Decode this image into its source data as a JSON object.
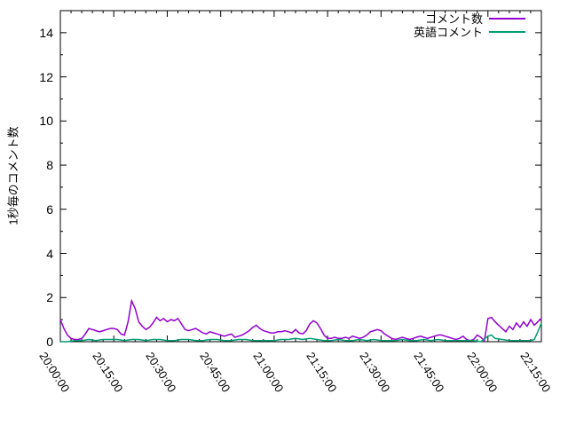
{
  "figure": {
    "background": "#ffffff",
    "frame_color": "#000000"
  },
  "chart_data": {
    "type": "line",
    "title": "",
    "xlabel": "",
    "ylabel": "1秒毎のコメント数",
    "ylim": [
      0,
      15
    ],
    "xlim_minutes": [
      0,
      135
    ],
    "grid": false,
    "legend_position": "top-right-inside",
    "y_major_ticks": [
      0,
      2,
      4,
      6,
      8,
      10,
      12,
      14
    ],
    "y_minor_step": 1,
    "x_minor_step_minutes": 3,
    "x_ticks": [
      {
        "t": 0,
        "label": "20:00:00"
      },
      {
        "t": 15,
        "label": "20:15:00"
      },
      {
        "t": 30,
        "label": "20:30:00"
      },
      {
        "t": 45,
        "label": "20:45:00"
      },
      {
        "t": 60,
        "label": "21:00:00"
      },
      {
        "t": 75,
        "label": "21:15:00"
      },
      {
        "t": 90,
        "label": "21:30:00"
      },
      {
        "t": 105,
        "label": "21:45:00"
      },
      {
        "t": 120,
        "label": "22:00:00"
      },
      {
        "t": 135,
        "label": "22:15:00"
      }
    ],
    "series": [
      {
        "name": "コメント数",
        "color": "#9400d3",
        "points": [
          [
            0,
            1.0
          ],
          [
            1,
            0.6
          ],
          [
            2,
            0.3
          ],
          [
            3,
            0.15
          ],
          [
            4,
            0.1
          ],
          [
            5,
            0.1
          ],
          [
            6,
            0.15
          ],
          [
            7,
            0.35
          ],
          [
            8,
            0.6
          ],
          [
            9,
            0.55
          ],
          [
            10,
            0.5
          ],
          [
            11,
            0.45
          ],
          [
            12,
            0.5
          ],
          [
            13,
            0.55
          ],
          [
            14,
            0.6
          ],
          [
            15,
            0.6
          ],
          [
            16,
            0.55
          ],
          [
            17,
            0.35
          ],
          [
            18,
            0.3
          ],
          [
            19,
            0.9
          ],
          [
            20,
            1.85
          ],
          [
            21,
            1.5
          ],
          [
            22,
            0.9
          ],
          [
            23,
            0.7
          ],
          [
            24,
            0.55
          ],
          [
            25,
            0.65
          ],
          [
            26,
            0.85
          ],
          [
            27,
            1.1
          ],
          [
            28,
            0.95
          ],
          [
            29,
            1.05
          ],
          [
            30,
            0.9
          ],
          [
            31,
            1.0
          ],
          [
            32,
            0.95
          ],
          [
            33,
            1.05
          ],
          [
            34,
            0.8
          ],
          [
            35,
            0.55
          ],
          [
            36,
            0.5
          ],
          [
            37,
            0.55
          ],
          [
            38,
            0.6
          ],
          [
            39,
            0.5
          ],
          [
            40,
            0.4
          ],
          [
            41,
            0.35
          ],
          [
            42,
            0.45
          ],
          [
            43,
            0.4
          ],
          [
            44,
            0.35
          ],
          [
            45,
            0.3
          ],
          [
            46,
            0.25
          ],
          [
            47,
            0.3
          ],
          [
            48,
            0.35
          ],
          [
            49,
            0.2
          ],
          [
            50,
            0.25
          ],
          [
            51,
            0.3
          ],
          [
            52,
            0.4
          ],
          [
            53,
            0.5
          ],
          [
            54,
            0.65
          ],
          [
            55,
            0.75
          ],
          [
            56,
            0.6
          ],
          [
            57,
            0.5
          ],
          [
            58,
            0.45
          ],
          [
            59,
            0.4
          ],
          [
            60,
            0.4
          ],
          [
            61,
            0.45
          ],
          [
            62,
            0.45
          ],
          [
            63,
            0.5
          ],
          [
            64,
            0.45
          ],
          [
            65,
            0.4
          ],
          [
            66,
            0.55
          ],
          [
            67,
            0.4
          ],
          [
            68,
            0.35
          ],
          [
            69,
            0.5
          ],
          [
            70,
            0.8
          ],
          [
            71,
            0.95
          ],
          [
            72,
            0.85
          ],
          [
            73,
            0.6
          ],
          [
            74,
            0.3
          ],
          [
            75,
            0.15
          ],
          [
            76,
            0.15
          ],
          [
            77,
            0.2
          ],
          [
            78,
            0.15
          ],
          [
            79,
            0.15
          ],
          [
            80,
            0.2
          ],
          [
            81,
            0.15
          ],
          [
            82,
            0.25
          ],
          [
            83,
            0.2
          ],
          [
            84,
            0.15
          ],
          [
            85,
            0.2
          ],
          [
            86,
            0.3
          ],
          [
            87,
            0.45
          ],
          [
            88,
            0.5
          ],
          [
            89,
            0.55
          ],
          [
            90,
            0.5
          ],
          [
            91,
            0.35
          ],
          [
            92,
            0.25
          ],
          [
            93,
            0.15
          ],
          [
            94,
            0.1
          ],
          [
            95,
            0.15
          ],
          [
            96,
            0.2
          ],
          [
            97,
            0.15
          ],
          [
            98,
            0.1
          ],
          [
            99,
            0.15
          ],
          [
            100,
            0.2
          ],
          [
            101,
            0.25
          ],
          [
            102,
            0.2
          ],
          [
            103,
            0.15
          ],
          [
            104,
            0.2
          ],
          [
            105,
            0.25
          ],
          [
            106,
            0.3
          ],
          [
            107,
            0.3
          ],
          [
            108,
            0.25
          ],
          [
            109,
            0.2
          ],
          [
            110,
            0.15
          ],
          [
            111,
            0.1
          ],
          [
            112,
            0.15
          ],
          [
            113,
            0.25
          ],
          [
            114,
            0.1
          ],
          [
            115,
            0.05
          ],
          [
            116,
            0.1
          ],
          [
            117,
            0.3
          ],
          [
            118,
            0.2
          ],
          [
            119,
            0.05
          ],
          [
            120,
            1.05
          ],
          [
            121,
            1.1
          ],
          [
            122,
            0.9
          ],
          [
            123,
            0.75
          ],
          [
            124,
            0.6
          ],
          [
            125,
            0.45
          ],
          [
            126,
            0.7
          ],
          [
            127,
            0.55
          ],
          [
            128,
            0.85
          ],
          [
            129,
            0.65
          ],
          [
            130,
            0.9
          ],
          [
            131,
            0.7
          ],
          [
            132,
            1.0
          ],
          [
            133,
            0.75
          ],
          [
            134,
            0.9
          ],
          [
            135,
            1.05
          ]
        ]
      },
      {
        "name": "英語コメント",
        "color": "#009e73",
        "points": [
          [
            0,
            0.0
          ],
          [
            2,
            0.0
          ],
          [
            4,
            0.05
          ],
          [
            6,
            0.05
          ],
          [
            8,
            0.1
          ],
          [
            10,
            0.05
          ],
          [
            12,
            0.1
          ],
          [
            14,
            0.1
          ],
          [
            16,
            0.1
          ],
          [
            18,
            0.05
          ],
          [
            20,
            0.1
          ],
          [
            22,
            0.1
          ],
          [
            24,
            0.05
          ],
          [
            26,
            0.1
          ],
          [
            28,
            0.1
          ],
          [
            30,
            0.05
          ],
          [
            32,
            0.05
          ],
          [
            34,
            0.1
          ],
          [
            36,
            0.1
          ],
          [
            38,
            0.05
          ],
          [
            40,
            0.05
          ],
          [
            42,
            0.1
          ],
          [
            44,
            0.1
          ],
          [
            46,
            0.05
          ],
          [
            48,
            0.05
          ],
          [
            50,
            0.1
          ],
          [
            52,
            0.1
          ],
          [
            54,
            0.05
          ],
          [
            56,
            0.05
          ],
          [
            58,
            0.05
          ],
          [
            60,
            0.05
          ],
          [
            62,
            0.1
          ],
          [
            64,
            0.1
          ],
          [
            66,
            0.15
          ],
          [
            68,
            0.1
          ],
          [
            70,
            0.15
          ],
          [
            72,
            0.1
          ],
          [
            74,
            0.05
          ],
          [
            76,
            0.05
          ],
          [
            78,
            0.1
          ],
          [
            80,
            0.05
          ],
          [
            82,
            0.05
          ],
          [
            84,
            0.1
          ],
          [
            86,
            0.05
          ],
          [
            88,
            0.1
          ],
          [
            90,
            0.05
          ],
          [
            92,
            0.05
          ],
          [
            94,
            0.05
          ],
          [
            96,
            0.1
          ],
          [
            98,
            0.05
          ],
          [
            100,
            0.05
          ],
          [
            102,
            0.1
          ],
          [
            104,
            0.05
          ],
          [
            106,
            0.1
          ],
          [
            108,
            0.05
          ],
          [
            110,
            0.05
          ],
          [
            112,
            0.05
          ],
          [
            114,
            0.05
          ],
          [
            116,
            0.05
          ],
          [
            118,
            0.0
          ],
          [
            120,
            0.25
          ],
          [
            121,
            0.3
          ],
          [
            122,
            0.15
          ],
          [
            124,
            0.1
          ],
          [
            126,
            0.05
          ],
          [
            128,
            0.05
          ],
          [
            130,
            0.05
          ],
          [
            132,
            0.05
          ],
          [
            133,
            0.1
          ],
          [
            134,
            0.45
          ],
          [
            135,
            0.85
          ]
        ]
      }
    ]
  }
}
